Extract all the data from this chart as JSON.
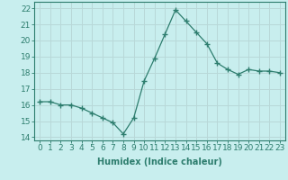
{
  "x": [
    0,
    1,
    2,
    3,
    4,
    5,
    6,
    7,
    8,
    9,
    10,
    11,
    12,
    13,
    14,
    15,
    16,
    17,
    18,
    19,
    20,
    21,
    22,
    23
  ],
  "y": [
    16.2,
    16.2,
    16.0,
    16.0,
    15.8,
    15.5,
    15.2,
    14.9,
    14.2,
    15.2,
    17.5,
    18.9,
    20.4,
    21.9,
    21.2,
    20.5,
    19.8,
    18.6,
    18.2,
    17.9,
    18.2,
    18.1,
    18.1,
    18.0
  ],
  "line_color": "#2d7d6e",
  "marker": "+",
  "marker_size": 4,
  "bg_color": "#c8eeee",
  "grid_color": "#b8d8d8",
  "xlabel": "Humidex (Indice chaleur)",
  "ylim": [
    13.8,
    22.4
  ],
  "xlim": [
    -0.5,
    23.5
  ],
  "yticks": [
    14,
    15,
    16,
    17,
    18,
    19,
    20,
    21,
    22
  ],
  "xticks": [
    0,
    1,
    2,
    3,
    4,
    5,
    6,
    7,
    8,
    9,
    10,
    11,
    12,
    13,
    14,
    15,
    16,
    17,
    18,
    19,
    20,
    21,
    22,
    23
  ],
  "tick_color": "#2d7d6e",
  "label_color": "#2d7d6e",
  "font_size": 6.5
}
